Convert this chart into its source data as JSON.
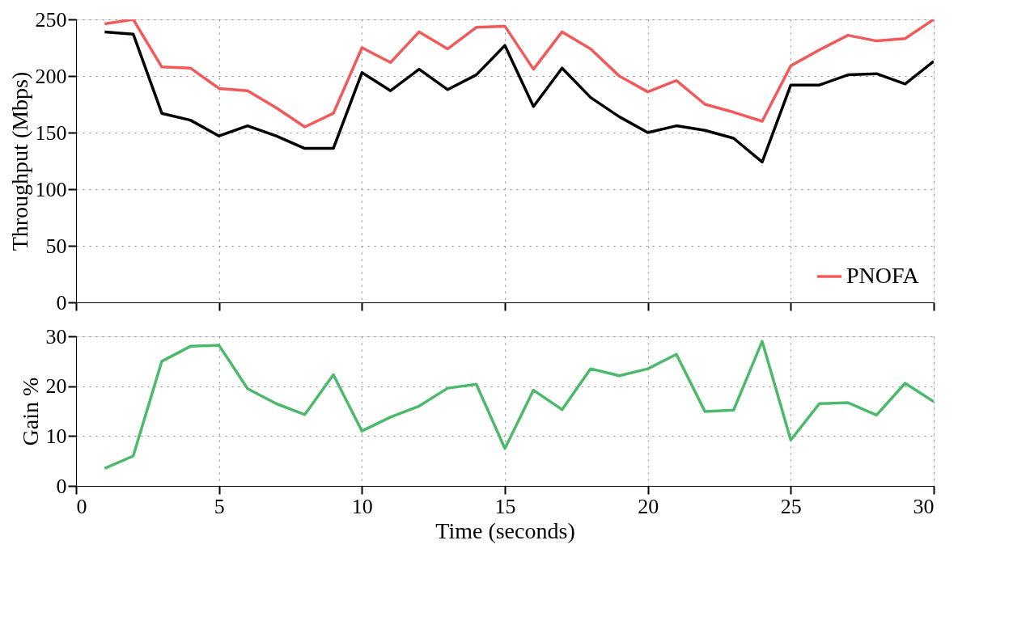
{
  "chart_data": [
    {
      "type": "line",
      "ylabel": "Throughput (Mbps)",
      "x": [
        1,
        2,
        3,
        4,
        5,
        6,
        7,
        8,
        9,
        10,
        11,
        12,
        13,
        14,
        15,
        16,
        17,
        18,
        19,
        20,
        21,
        22,
        23,
        24,
        25,
        26,
        27,
        28,
        29,
        30
      ],
      "xlim": [
        0,
        30
      ],
      "xticks": [
        0,
        5,
        10,
        15,
        20,
        25,
        30
      ],
      "ylim": [
        0,
        250
      ],
      "yticks": [
        0,
        50,
        100,
        150,
        200,
        250
      ],
      "grid": true,
      "legend": "bottom right",
      "tick_labels": "y",
      "series": [
        {
          "name": "PNOFA",
          "color": "#f05a5a",
          "values": [
            246,
            250,
            208,
            207,
            189,
            187,
            172,
            155,
            167,
            225,
            212,
            239,
            224,
            243,
            244,
            206,
            239,
            224,
            200,
            186,
            196,
            175,
            168,
            160,
            209,
            223,
            236,
            231,
            233,
            250
          ]
        },
        {
          "color": "#000000",
          "values": [
            239,
            237,
            167,
            161,
            147,
            156,
            147,
            136,
            136,
            203,
            187,
            206,
            188,
            201,
            227,
            173,
            207,
            181,
            164,
            150,
            156,
            152,
            145,
            124,
            192,
            192,
            201,
            202,
            193,
            213
          ]
        }
      ]
    },
    {
      "type": "line",
      "xlabel": "Time (seconds)",
      "ylabel": "Gain %",
      "x": [
        1,
        2,
        3,
        4,
        5,
        6,
        7,
        8,
        9,
        10,
        11,
        12,
        13,
        14,
        15,
        16,
        17,
        18,
        19,
        20,
        21,
        22,
        23,
        24,
        25,
        26,
        27,
        28,
        29,
        30
      ],
      "xlim": [
        0,
        30
      ],
      "xticks": [
        0,
        5,
        10,
        15,
        20,
        25,
        30
      ],
      "ylim": [
        0,
        30
      ],
      "yticks": [
        0,
        10,
        20,
        30
      ],
      "grid": true,
      "series": [
        {
          "color": "#4cba6a",
          "values": [
            3.5,
            6,
            25,
            28,
            28.2,
            19.5,
            16.5,
            14.3,
            22.3,
            11,
            13.8,
            16,
            19.6,
            20.4,
            7.5,
            19.2,
            15.3,
            23.5,
            22.1,
            23.5,
            26.4,
            14.9,
            15.2,
            29,
            9.2,
            16.5,
            16.7,
            14.2,
            20.6,
            16.9
          ]
        }
      ]
    }
  ]
}
